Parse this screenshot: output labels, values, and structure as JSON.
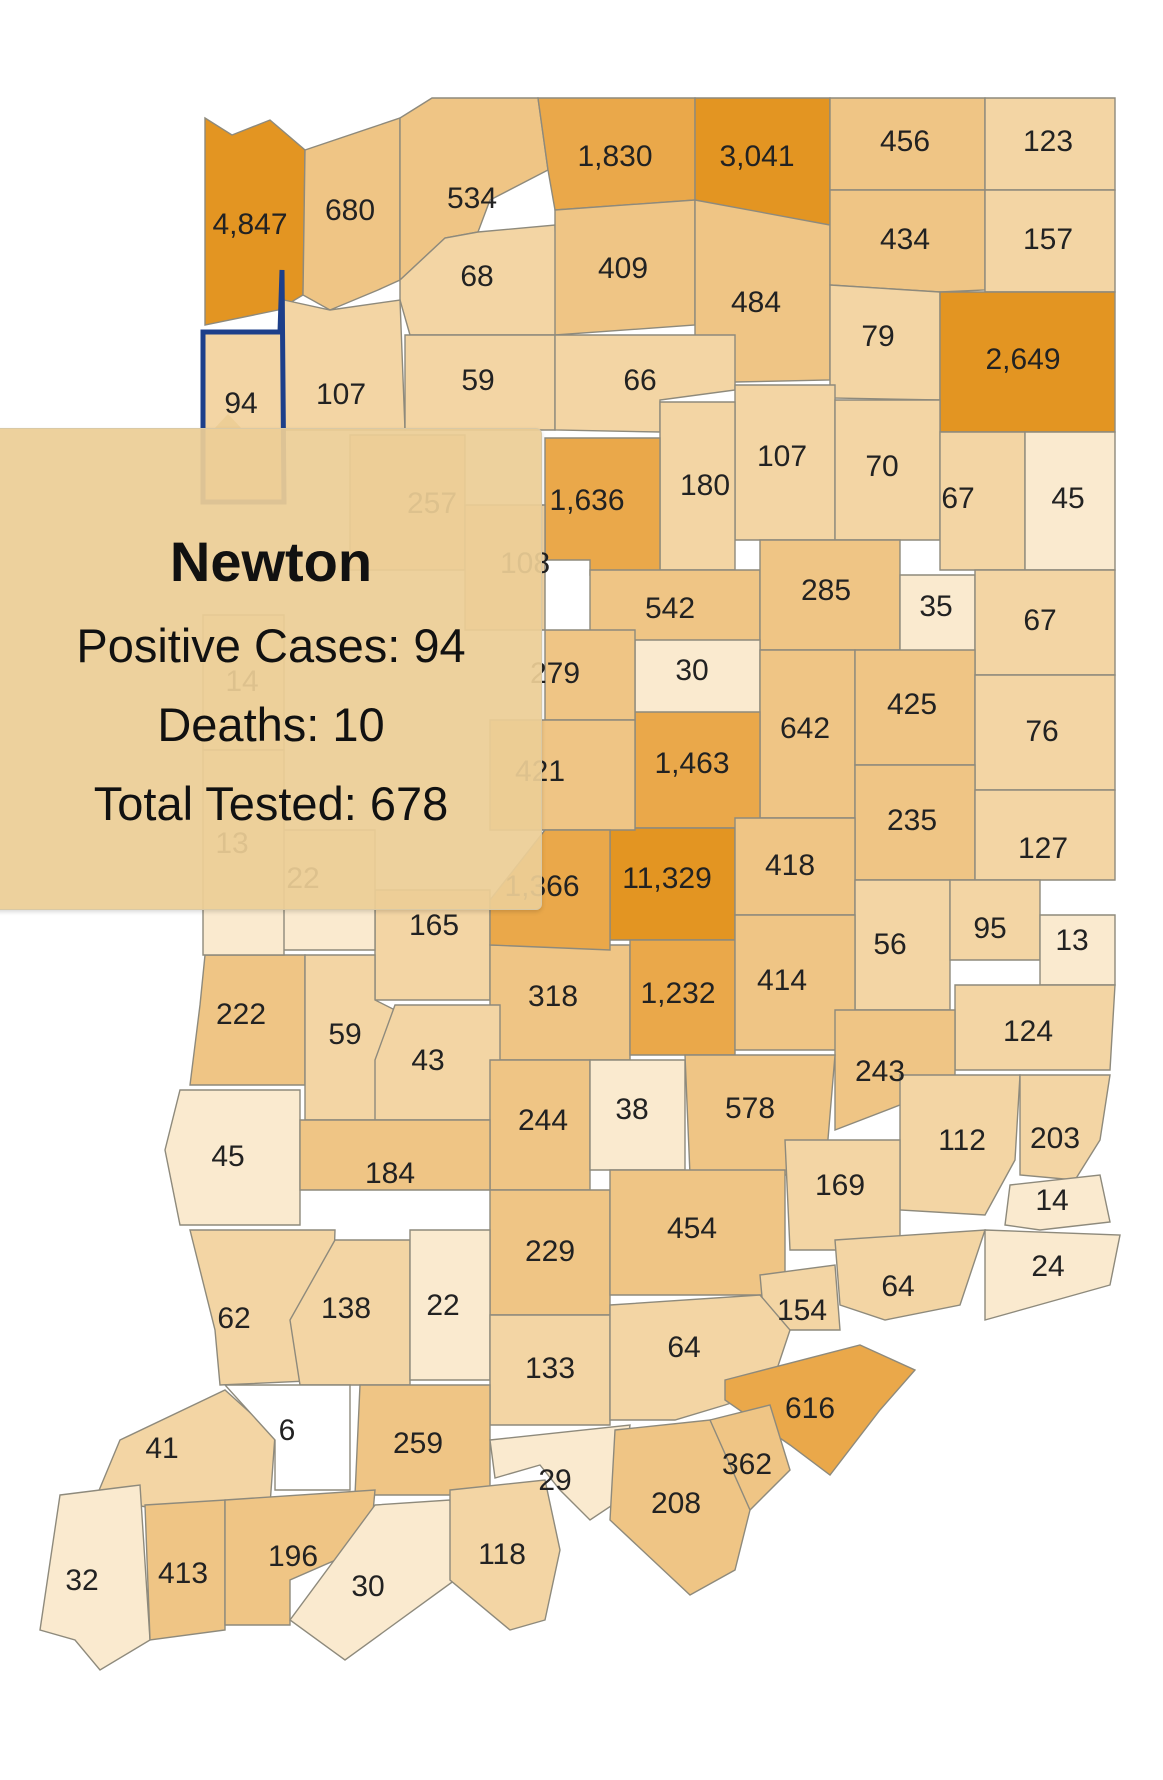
{
  "colors": {
    "c1": "#faeacf",
    "c2": "#f3d5a4",
    "c3": "#efc585",
    "c4": "#eaa84a",
    "c5": "#e39522",
    "border": "#8e8a7c",
    "selected_border": "#1d3f8a"
  },
  "selected_county": "Newton",
  "tooltip": {
    "title": "Newton",
    "positive_cases": "Positive Cases: 94",
    "deaths": "Deaths: 10",
    "total_tested": "Total Tested: 678"
  },
  "counties": [
    {
      "value": "4,847",
      "tier": 5
    },
    {
      "value": "680",
      "tier": 3
    },
    {
      "value": "534",
      "tier": 3
    },
    {
      "value": "1,830",
      "tier": 4
    },
    {
      "value": "3,041",
      "tier": 5
    },
    {
      "value": "456",
      "tier": 3
    },
    {
      "value": "123",
      "tier": 2
    },
    {
      "value": "68",
      "tier": 2
    },
    {
      "value": "409",
      "tier": 3
    },
    {
      "value": "484",
      "tier": 3
    },
    {
      "value": "434",
      "tier": 3
    },
    {
      "value": "157",
      "tier": 2
    },
    {
      "value": "79",
      "tier": 2
    },
    {
      "value": "2,649",
      "tier": 5
    },
    {
      "value": "94",
      "tier": 2,
      "name": "Newton"
    },
    {
      "value": "107",
      "tier": 2
    },
    {
      "value": "59",
      "tier": 2
    },
    {
      "value": "66",
      "tier": 2
    },
    {
      "value": "107",
      "tier": 2
    },
    {
      "value": "70",
      "tier": 2
    },
    {
      "value": "180",
      "tier": 2
    },
    {
      "value": "1,636",
      "tier": 4
    },
    {
      "value": "67",
      "tier": 2
    },
    {
      "value": "45",
      "tier": 1
    },
    {
      "value": "542",
      "tier": 3
    },
    {
      "value": "285",
      "tier": 3
    },
    {
      "value": "35",
      "tier": 1
    },
    {
      "value": "67",
      "tier": 2
    },
    {
      "value": "30",
      "tier": 1
    },
    {
      "value": "642",
      "tier": 3
    },
    {
      "value": "425",
      "tier": 3
    },
    {
      "value": "76",
      "tier": 2
    },
    {
      "value": "1,463",
      "tier": 4
    },
    {
      "value": "235",
      "tier": 3
    },
    {
      "value": "127",
      "tier": 2
    },
    {
      "value": "11,329",
      "tier": 5
    },
    {
      "value": "418",
      "tier": 3
    },
    {
      "value": "165",
      "tier": 2
    },
    {
      "value": "56",
      "tier": 2
    },
    {
      "value": "95",
      "tier": 2
    },
    {
      "value": "13",
      "tier": 1
    },
    {
      "value": "222",
      "tier": 3
    },
    {
      "value": "59",
      "tier": 2
    },
    {
      "value": "318",
      "tier": 3
    },
    {
      "value": "1,232",
      "tier": 4
    },
    {
      "value": "414",
      "tier": 3
    },
    {
      "value": "124",
      "tier": 2
    },
    {
      "value": "43",
      "tier": 2
    },
    {
      "value": "243",
      "tier": 3
    },
    {
      "value": "244",
      "tier": 3
    },
    {
      "value": "38",
      "tier": 1
    },
    {
      "value": "578",
      "tier": 3
    },
    {
      "value": "45",
      "tier": 1
    },
    {
      "value": "184",
      "tier": 3
    },
    {
      "value": "112",
      "tier": 2
    },
    {
      "value": "203",
      "tier": 2
    },
    {
      "value": "169",
      "tier": 2
    },
    {
      "value": "14",
      "tier": 1
    },
    {
      "value": "229",
      "tier": 3
    },
    {
      "value": "454",
      "tier": 3
    },
    {
      "value": "62",
      "tier": 2
    },
    {
      "value": "138",
      "tier": 2
    },
    {
      "value": "22",
      "tier": 1
    },
    {
      "value": "64",
      "tier": 2
    },
    {
      "value": "24",
      "tier": 1
    },
    {
      "value": "154",
      "tier": 2
    },
    {
      "value": "133",
      "tier": 2
    },
    {
      "value": "64",
      "tier": 2
    },
    {
      "value": "616",
      "tier": 4
    },
    {
      "value": "41",
      "tier": 2
    },
    {
      "value": "6",
      "tier": 0
    },
    {
      "value": "259",
      "tier": 3
    },
    {
      "value": "29",
      "tier": 1
    },
    {
      "value": "362",
      "tier": 3
    },
    {
      "value": "208",
      "tier": 3
    },
    {
      "value": "32",
      "tier": 1
    },
    {
      "value": "413",
      "tier": 3
    },
    {
      "value": "196",
      "tier": 3
    },
    {
      "value": "30",
      "tier": 1
    },
    {
      "value": "118",
      "tier": 2
    },
    {
      "value": "257",
      "tier": 2
    },
    {
      "value": "108",
      "tier": 2
    },
    {
      "value": "279",
      "tier": 3
    },
    {
      "value": "421",
      "tier": 3
    },
    {
      "value": "1,366",
      "tier": 4
    },
    {
      "value": "22",
      "tier": 1
    },
    {
      "value": "14",
      "tier": 1
    },
    {
      "value": "13",
      "tier": 1
    }
  ]
}
